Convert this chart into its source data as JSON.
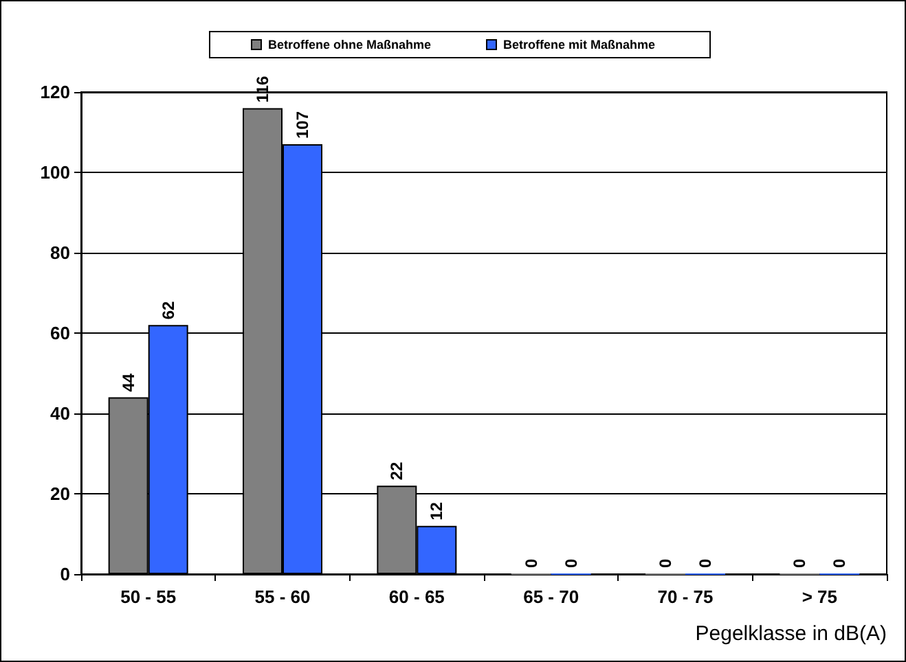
{
  "chart_data": {
    "type": "bar",
    "xlabel": "Pegelklasse in dB(A)",
    "categories": [
      "50 - 55",
      "55 - 60",
      "60 - 65",
      "65 - 70",
      "70 - 75",
      "> 75"
    ],
    "series": [
      {
        "name": "Betroffene ohne Maßnahme",
        "color": "#808080",
        "values": [
          44,
          116,
          22,
          0,
          0,
          0
        ]
      },
      {
        "name": "Betroffene mit Maßnahme",
        "color": "#3366ff",
        "values": [
          62,
          107,
          12,
          0,
          0,
          0
        ]
      }
    ],
    "ylim": [
      0,
      120
    ],
    "yticks": [
      0,
      20,
      40,
      60,
      80,
      100,
      120
    ],
    "grid": "y",
    "legend": "top",
    "data_labels": true
  }
}
